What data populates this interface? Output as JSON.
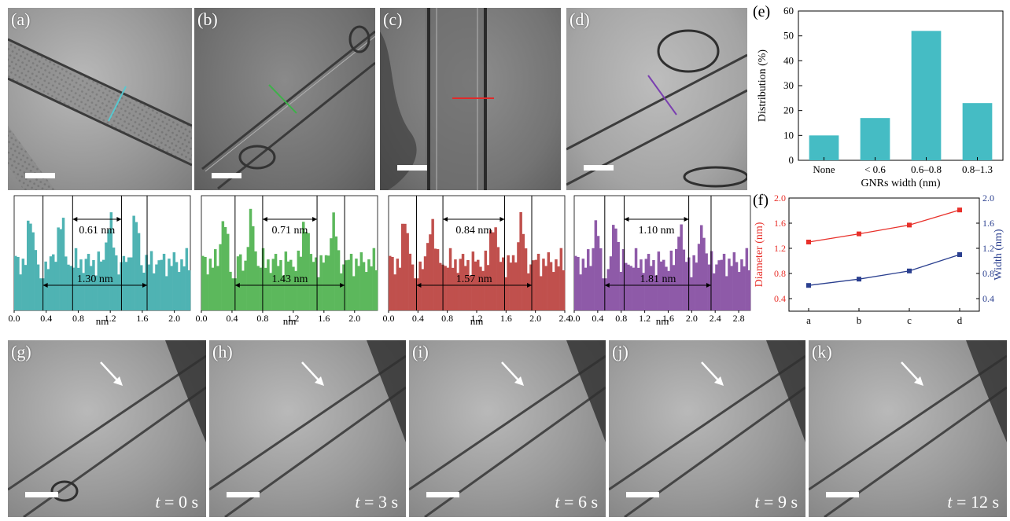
{
  "panels": {
    "a": {
      "letter": "(a)"
    },
    "b": {
      "letter": "(b)"
    },
    "c": {
      "letter": "(c)"
    },
    "d": {
      "letter": "(d)"
    },
    "e": {
      "letter": "(e)"
    },
    "f": {
      "letter": "(f)"
    },
    "g": {
      "letter": "(g)",
      "time_var": "t",
      "time_rest": " = 0 s"
    },
    "h": {
      "letter": "(h)",
      "time_var": "t",
      "time_rest": " = 3 s"
    },
    "i": {
      "letter": "(i)",
      "time_var": "t",
      "time_rest": " = 6 s"
    },
    "j": {
      "letter": "(j)",
      "time_var": "t",
      "time_rest": " = 9 s"
    },
    "k": {
      "letter": "(k)",
      "time_var": "t",
      "time_rest": " = 12 s"
    }
  },
  "profiles": [
    {
      "color": "#4fb3b3",
      "inner": "0.61 nm",
      "outer": "1.30 nm",
      "xlabel": "nm",
      "ticks": [
        "0.0",
        "0.4",
        "0.8",
        "1.2",
        "1.6",
        "2.0"
      ],
      "xmax": 2.2,
      "inner_range": [
        0.73,
        1.34
      ],
      "outer_range": [
        0.36,
        1.66
      ]
    },
    {
      "color": "#5cb85c",
      "inner": "0.71 nm",
      "outer": "1.43 nm",
      "xlabel": "nm",
      "ticks": [
        "0.0",
        "0.4",
        "0.8",
        "1.2",
        "1.6",
        "2.0"
      ],
      "xmax": 2.3,
      "inner_range": [
        0.8,
        1.51
      ],
      "outer_range": [
        0.44,
        1.87
      ]
    },
    {
      "color": "#c0504d",
      "inner": "0.84 nm",
      "outer": "1.57 nm",
      "xlabel": "nm",
      "ticks": [
        "0.0",
        "0.4",
        "0.8",
        "1.2",
        "1.6",
        "2.0",
        "2.4"
      ],
      "xmax": 2.4,
      "inner_range": [
        0.74,
        1.58
      ],
      "outer_range": [
        0.38,
        1.95
      ]
    },
    {
      "color": "#8e5aa8",
      "inner": "1.10 nm",
      "outer": "1.81 nm",
      "xlabel": "nm",
      "ticks": [
        "0.0",
        "0.4",
        "0.8",
        "1.2",
        "1.6",
        "2.0",
        "2.4",
        "2.8"
      ],
      "xmax": 3.0,
      "inner_range": [
        0.85,
        1.95
      ],
      "outer_range": [
        0.52,
        2.33
      ]
    }
  ],
  "chart_data": [
    {
      "type": "bar",
      "panel": "(e)",
      "categories": [
        "None",
        "< 0.6",
        "0.6–0.8",
        "0.8–1.3"
      ],
      "values": [
        10,
        17,
        52,
        23
      ],
      "xlabel": "GNRs width (nm)",
      "ylabel": "Distribution (%)",
      "ylim": [
        0,
        60
      ],
      "yticks": [
        "0",
        "10",
        "20",
        "30",
        "40",
        "50",
        "60"
      ],
      "bar_color": "#45bcc4"
    },
    {
      "type": "line",
      "panel": "(f)",
      "categories": [
        "a",
        "b",
        "c",
        "d"
      ],
      "series": [
        {
          "name": "Diameter (nm)",
          "values": [
            1.3,
            1.43,
            1.57,
            1.81
          ],
          "color": "#e8302a",
          "axis": "left"
        },
        {
          "name": "Width (nm)",
          "values": [
            0.61,
            0.71,
            0.84,
            1.1
          ],
          "color": "#2a3f8f",
          "axis": "right"
        }
      ],
      "ylabel_left": "Diameter (nm)",
      "ylabel_right": "Width (nm)",
      "ylim": [
        0.2,
        2.0
      ],
      "yticks": [
        "0.4",
        "0.8",
        "1.2",
        "1.6",
        "2.0"
      ]
    }
  ]
}
